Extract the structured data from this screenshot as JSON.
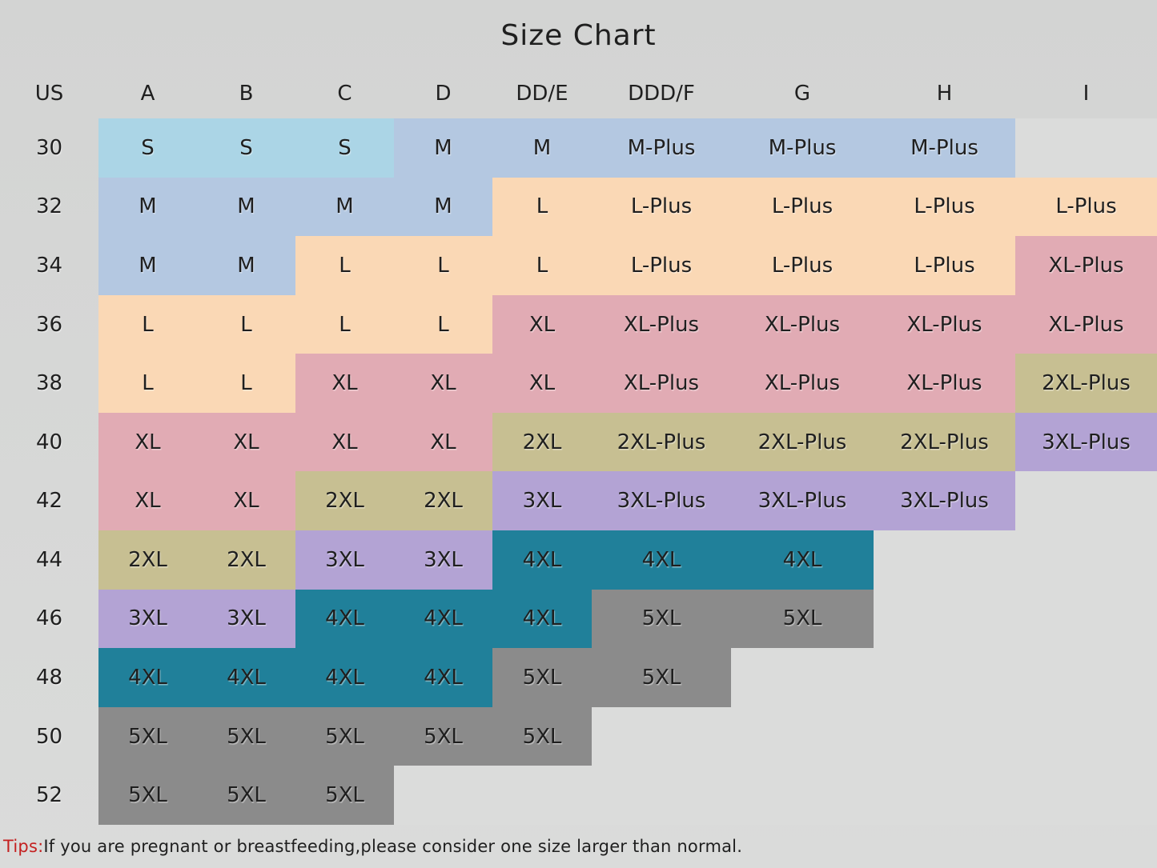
{
  "title": "Size Chart",
  "palette": {
    "lightblue": "#abd5e6",
    "blue": "#b4c8e1",
    "peach": "#fad8b5",
    "pink": "#e1abb4",
    "khaki": "#c7bf92",
    "purple": "#b3a3d4",
    "teal": "#20809a",
    "gray": "#8b8b8b",
    "empty": "#dbdcdb",
    "page_bg": "#d5d6d5",
    "text": "#1f1f1f",
    "tips_red": "#c42020"
  },
  "chart_data": {
    "type": "table",
    "title": "Size Chart",
    "columns": [
      "US",
      "A",
      "B",
      "C",
      "D",
      "DD/E",
      "DDD/F",
      "G",
      "H",
      "I"
    ],
    "rows": [
      {
        "us": "30",
        "cells": [
          {
            "t": "S",
            "c": "lightblue"
          },
          {
            "t": "S",
            "c": "lightblue"
          },
          {
            "t": "S",
            "c": "lightblue"
          },
          {
            "t": "M",
            "c": "blue"
          },
          {
            "t": "M",
            "c": "blue"
          },
          {
            "t": "M-Plus",
            "c": "blue"
          },
          {
            "t": "M-Plus",
            "c": "blue"
          },
          {
            "t": "M-Plus",
            "c": "blue"
          },
          {
            "t": "",
            "c": "empty"
          }
        ]
      },
      {
        "us": "32",
        "cells": [
          {
            "t": "M",
            "c": "blue"
          },
          {
            "t": "M",
            "c": "blue"
          },
          {
            "t": "M",
            "c": "blue"
          },
          {
            "t": "M",
            "c": "blue"
          },
          {
            "t": "L",
            "c": "peach"
          },
          {
            "t": "L-Plus",
            "c": "peach"
          },
          {
            "t": "L-Plus",
            "c": "peach"
          },
          {
            "t": "L-Plus",
            "c": "peach"
          },
          {
            "t": "L-Plus",
            "c": "peach"
          }
        ]
      },
      {
        "us": "34",
        "cells": [
          {
            "t": "M",
            "c": "blue"
          },
          {
            "t": "M",
            "c": "blue"
          },
          {
            "t": "L",
            "c": "peach"
          },
          {
            "t": "L",
            "c": "peach"
          },
          {
            "t": "L",
            "c": "peach"
          },
          {
            "t": "L-Plus",
            "c": "peach"
          },
          {
            "t": "L-Plus",
            "c": "peach"
          },
          {
            "t": "L-Plus",
            "c": "peach"
          },
          {
            "t": "XL-Plus",
            "c": "pink"
          }
        ]
      },
      {
        "us": "36",
        "cells": [
          {
            "t": "L",
            "c": "peach"
          },
          {
            "t": "L",
            "c": "peach"
          },
          {
            "t": "L",
            "c": "peach"
          },
          {
            "t": "L",
            "c": "peach"
          },
          {
            "t": "XL",
            "c": "pink"
          },
          {
            "t": "XL-Plus",
            "c": "pink"
          },
          {
            "t": "XL-Plus",
            "c": "pink"
          },
          {
            "t": "XL-Plus",
            "c": "pink"
          },
          {
            "t": "XL-Plus",
            "c": "pink"
          }
        ]
      },
      {
        "us": "38",
        "cells": [
          {
            "t": "L",
            "c": "peach"
          },
          {
            "t": "L",
            "c": "peach"
          },
          {
            "t": "XL",
            "c": "pink"
          },
          {
            "t": "XL",
            "c": "pink"
          },
          {
            "t": "XL",
            "c": "pink"
          },
          {
            "t": "XL-Plus",
            "c": "pink"
          },
          {
            "t": "XL-Plus",
            "c": "pink"
          },
          {
            "t": "XL-Plus",
            "c": "pink"
          },
          {
            "t": "2XL-Plus",
            "c": "khaki"
          }
        ]
      },
      {
        "us": "40",
        "cells": [
          {
            "t": "XL",
            "c": "pink"
          },
          {
            "t": "XL",
            "c": "pink"
          },
          {
            "t": "XL",
            "c": "pink"
          },
          {
            "t": "XL",
            "c": "pink"
          },
          {
            "t": "2XL",
            "c": "khaki"
          },
          {
            "t": "2XL-Plus",
            "c": "khaki"
          },
          {
            "t": "2XL-Plus",
            "c": "khaki"
          },
          {
            "t": "2XL-Plus",
            "c": "khaki"
          },
          {
            "t": "3XL-Plus",
            "c": "purple"
          }
        ]
      },
      {
        "us": "42",
        "cells": [
          {
            "t": "XL",
            "c": "pink"
          },
          {
            "t": "XL",
            "c": "pink"
          },
          {
            "t": "2XL",
            "c": "khaki"
          },
          {
            "t": "2XL",
            "c": "khaki"
          },
          {
            "t": "3XL",
            "c": "purple"
          },
          {
            "t": "3XL-Plus",
            "c": "purple"
          },
          {
            "t": "3XL-Plus",
            "c": "purple"
          },
          {
            "t": "3XL-Plus",
            "c": "purple"
          },
          {
            "t": "",
            "c": "empty"
          }
        ]
      },
      {
        "us": "44",
        "cells": [
          {
            "t": "2XL",
            "c": "khaki"
          },
          {
            "t": "2XL",
            "c": "khaki"
          },
          {
            "t": "3XL",
            "c": "purple"
          },
          {
            "t": "3XL",
            "c": "purple"
          },
          {
            "t": "4XL",
            "c": "teal"
          },
          {
            "t": "4XL",
            "c": "teal"
          },
          {
            "t": "4XL",
            "c": "teal"
          },
          {
            "t": "",
            "c": "empty"
          },
          {
            "t": "",
            "c": "empty"
          }
        ]
      },
      {
        "us": "46",
        "cells": [
          {
            "t": "3XL",
            "c": "purple"
          },
          {
            "t": "3XL",
            "c": "purple"
          },
          {
            "t": "4XL",
            "c": "teal"
          },
          {
            "t": "4XL",
            "c": "teal"
          },
          {
            "t": "4XL",
            "c": "teal"
          },
          {
            "t": "5XL",
            "c": "gray"
          },
          {
            "t": "5XL",
            "c": "gray"
          },
          {
            "t": "",
            "c": "empty"
          },
          {
            "t": "",
            "c": "empty"
          }
        ]
      },
      {
        "us": "48",
        "cells": [
          {
            "t": "4XL",
            "c": "teal"
          },
          {
            "t": "4XL",
            "c": "teal"
          },
          {
            "t": "4XL",
            "c": "teal"
          },
          {
            "t": "4XL",
            "c": "teal"
          },
          {
            "t": "5XL",
            "c": "gray"
          },
          {
            "t": "5XL",
            "c": "gray"
          },
          {
            "t": "",
            "c": "empty"
          },
          {
            "t": "",
            "c": "empty"
          },
          {
            "t": "",
            "c": "empty"
          }
        ]
      },
      {
        "us": "50",
        "cells": [
          {
            "t": "5XL",
            "c": "gray"
          },
          {
            "t": "5XL",
            "c": "gray"
          },
          {
            "t": "5XL",
            "c": "gray"
          },
          {
            "t": "5XL",
            "c": "gray"
          },
          {
            "t": "5XL",
            "c": "gray"
          },
          {
            "t": "",
            "c": "empty"
          },
          {
            "t": "",
            "c": "empty"
          },
          {
            "t": "",
            "c": "empty"
          },
          {
            "t": "",
            "c": "empty"
          }
        ]
      },
      {
        "us": "52",
        "cells": [
          {
            "t": "5XL",
            "c": "gray"
          },
          {
            "t": "5XL",
            "c": "gray"
          },
          {
            "t": "5XL",
            "c": "gray"
          },
          {
            "t": "",
            "c": "empty"
          },
          {
            "t": "",
            "c": "empty"
          },
          {
            "t": "",
            "c": "empty"
          },
          {
            "t": "",
            "c": "empty"
          },
          {
            "t": "",
            "c": "empty"
          },
          {
            "t": "",
            "c": "empty"
          }
        ]
      }
    ]
  },
  "tips": {
    "label": "Tips:",
    "text": "If you are pregnant or breastfeeding,please consider one size larger than normal."
  }
}
